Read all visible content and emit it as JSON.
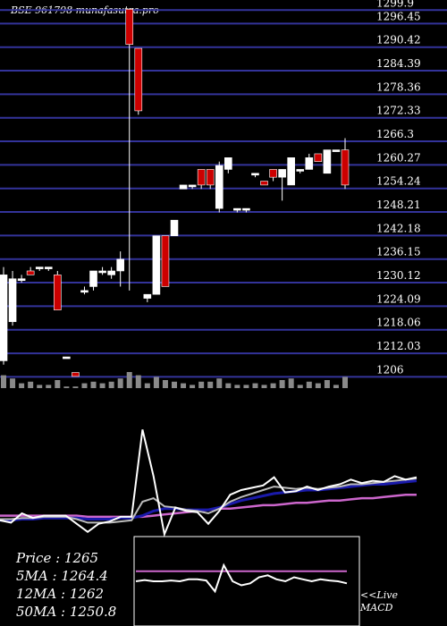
{
  "chart_data": [
    {
      "type": "candlestick",
      "title": "BSE 961798  munafasutra.pro",
      "y_ticks": [
        1299.9,
        1296.45,
        1290.42,
        1284.39,
        1278.36,
        1272.33,
        1266.3,
        1260.27,
        1254.24,
        1248.21,
        1242.18,
        1236.15,
        1230.12,
        1224.09,
        1218.06,
        1212.03,
        1206
      ],
      "ylim": [
        1203,
        1301
      ],
      "grid": true,
      "colors": {
        "up": "#ffffff",
        "down": "#cc0000",
        "grid": "#33339a"
      },
      "candles": [
        {
          "o": 1210,
          "h": 1234,
          "l": 1209,
          "c": 1232
        },
        {
          "o": 1220,
          "h": 1233,
          "l": 1219,
          "c": 1231
        },
        {
          "o": 1231,
          "h": 1232,
          "l": 1230,
          "c": 1231
        },
        {
          "o": 1233,
          "h": 1234,
          "l": 1232,
          "c": 1232
        },
        {
          "o": 1234,
          "h": 1234,
          "l": 1233,
          "c": 1234
        },
        {
          "o": 1234,
          "h": 1234,
          "l": 1233,
          "c": 1234
        },
        {
          "o": 1232,
          "h": 1233,
          "l": 1223,
          "c": 1223
        },
        {
          "o": 1211,
          "h": 1211,
          "l": 1211,
          "c": 1211
        },
        {
          "o": 1207,
          "h": 1207,
          "l": 1206,
          "c": 1206
        },
        {
          "o": 1228,
          "h": 1229,
          "l": 1227,
          "c": 1228
        },
        {
          "o": 1229,
          "h": 1233,
          "l": 1228,
          "c": 1233
        },
        {
          "o": 1233,
          "h": 1234,
          "l": 1232,
          "c": 1233
        },
        {
          "o": 1232,
          "h": 1234,
          "l": 1231,
          "c": 1233
        },
        {
          "o": 1233,
          "h": 1238,
          "l": 1229,
          "c": 1236
        },
        {
          "o": 1300,
          "h": 1300,
          "l": 1228,
          "c": 1291
        },
        {
          "o": 1290,
          "h": 1290,
          "l": 1273,
          "c": 1274
        },
        {
          "o": 1226,
          "h": 1227,
          "l": 1225,
          "c": 1227
        },
        {
          "o": 1227,
          "h": 1242,
          "l": 1227,
          "c": 1242
        },
        {
          "o": 1242,
          "h": 1242,
          "l": 1229,
          "c": 1229
        },
        {
          "o": 1242,
          "h": 1246,
          "l": 1242,
          "c": 1246
        },
        {
          "o": 1254,
          "h": 1255,
          "l": 1254,
          "c": 1255
        },
        {
          "o": 1255,
          "h": 1255,
          "l": 1254,
          "c": 1255
        },
        {
          "o": 1259,
          "h": 1259,
          "l": 1254,
          "c": 1255
        },
        {
          "o": 1259,
          "h": 1259,
          "l": 1254,
          "c": 1255
        },
        {
          "o": 1249,
          "h": 1261,
          "l": 1248,
          "c": 1260
        },
        {
          "o": 1259,
          "h": 1262,
          "l": 1258,
          "c": 1262
        },
        {
          "o": 1249,
          "h": 1249,
          "l": 1248,
          "c": 1249
        },
        {
          "o": 1249,
          "h": 1249,
          "l": 1248,
          "c": 1249
        },
        {
          "o": 1258,
          "h": 1258,
          "l": 1257,
          "c": 1258
        },
        {
          "o": 1256,
          "h": 1256,
          "l": 1255,
          "c": 1255
        },
        {
          "o": 1259,
          "h": 1259,
          "l": 1256,
          "c": 1257
        },
        {
          "o": 1257,
          "h": 1259,
          "l": 1251,
          "c": 1259
        },
        {
          "o": 1255,
          "h": 1262,
          "l": 1255,
          "c": 1262
        },
        {
          "o": 1259,
          "h": 1259,
          "l": 1258,
          "c": 1259
        },
        {
          "o": 1259,
          "h": 1263,
          "l": 1259,
          "c": 1262
        },
        {
          "o": 1263,
          "h": 1263,
          "l": 1261,
          "c": 1261
        },
        {
          "o": 1258,
          "h": 1264,
          "l": 1258,
          "c": 1264
        },
        {
          "o": 1264,
          "h": 1264,
          "l": 1264,
          "c": 1264
        },
        {
          "o": 1264,
          "h": 1267,
          "l": 1254,
          "c": 1255
        }
      ],
      "volume": [
        8,
        6,
        3,
        4,
        2,
        2,
        5,
        1,
        1,
        3,
        4,
        3,
        4,
        6,
        10,
        8,
        3,
        7,
        5,
        4,
        3,
        2,
        4,
        4,
        6,
        3,
        2,
        2,
        3,
        2,
        3,
        5,
        6,
        2,
        4,
        3,
        5,
        2,
        7
      ]
    },
    {
      "type": "line",
      "ylim": [
        0,
        100
      ],
      "series": [
        {
          "color": "#ffffff",
          "values": [
            14,
            12,
            20,
            16,
            18,
            18,
            18,
            11,
            4,
            11,
            13,
            17,
            17,
            92,
            52,
            2,
            25,
            22,
            21,
            11,
            22,
            36,
            40,
            42,
            44,
            51,
            38,
            39,
            43,
            40,
            43,
            45,
            49,
            46,
            48,
            47,
            52,
            49,
            51
          ]
        },
        {
          "color": "#bbbbbb",
          "values": [
            15,
            15,
            16,
            16,
            17,
            17,
            17,
            15,
            12,
            12,
            12,
            13,
            14,
            30,
            33,
            26,
            25,
            23,
            22,
            20,
            24,
            30,
            34,
            37,
            40,
            43,
            42,
            41,
            42,
            41,
            42,
            43,
            45,
            45,
            46,
            47,
            48,
            49,
            50
          ]
        },
        {
          "color": "#1a1aaa",
          "values": [
            14,
            14,
            15,
            15,
            16,
            16,
            16,
            16,
            15,
            15,
            15,
            16,
            16,
            18,
            22,
            24,
            24,
            23,
            23,
            23,
            25,
            28,
            31,
            33,
            35,
            37,
            38,
            39,
            40,
            40,
            41,
            42,
            43,
            44,
            45,
            45,
            46,
            47,
            48
          ]
        },
        {
          "color": "#cc66cc",
          "values": [
            18,
            18,
            18,
            18,
            18,
            18,
            18,
            18,
            17,
            17,
            17,
            17,
            17,
            17,
            18,
            19,
            20,
            21,
            22,
            23,
            24,
            24,
            25,
            26,
            27,
            27,
            28,
            29,
            29,
            30,
            31,
            31,
            32,
            33,
            33,
            34,
            35,
            36,
            36
          ]
        }
      ]
    },
    {
      "type": "line",
      "label": "<<Live MACD",
      "ylim": [
        -10,
        10
      ],
      "series": [
        {
          "color": "#cc66cc",
          "values": [
            2.5,
            2.5,
            2.5,
            2.5,
            2.5,
            2.5,
            2.5,
            2.5,
            2.5,
            2.5,
            2.5,
            2.5,
            2.5,
            2.5,
            2.5,
            2.5,
            2.5,
            2.5,
            2.5,
            2.5,
            2.5,
            2.5,
            2.5,
            2.5,
            2.5
          ]
        },
        {
          "color": "#ffffff",
          "values": [
            0,
            0.3,
            0,
            0,
            0.2,
            0,
            0.5,
            0.5,
            0.2,
            -2.5,
            4,
            0,
            -1,
            -0.5,
            1,
            1.5,
            0.5,
            0,
            1,
            0.5,
            0,
            0.5,
            0.2,
            0,
            -0.5
          ]
        }
      ]
    }
  ],
  "summary": [
    {
      "label": "Price",
      "value": "1265"
    },
    {
      "label": "5MA",
      "value": "1264.4"
    },
    {
      "label": "12MA",
      "value": "1262"
    },
    {
      "label": "50MA",
      "value": "1250.8"
    }
  ]
}
